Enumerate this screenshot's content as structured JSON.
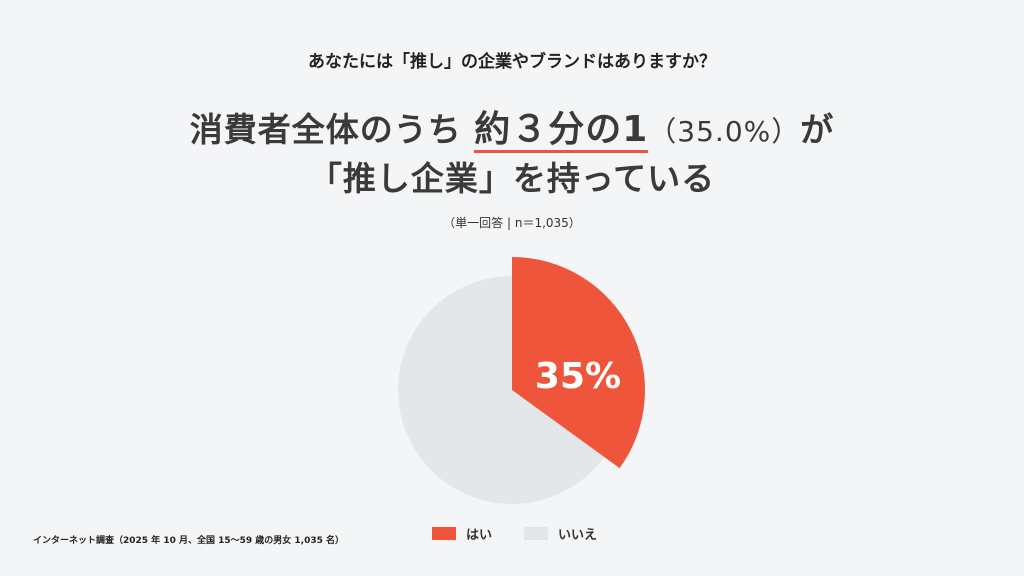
{
  "question": "あなたには「推し」の企業やブランドはありますか？",
  "headline": {
    "line1_pre": "消費者全体のうち",
    "line1_emphasis": "約３分の1",
    "line1_paren": "（35.0%）",
    "line1_post": "が",
    "line2": "「推し企業」を持っている"
  },
  "subtitle": "（単一回答 | n＝1,035）",
  "footnote": "インターネット調査（2025 年 10 月、全国 15〜59 歳の男女 1,035 名）",
  "chart_data": {
    "type": "pie",
    "slices": [
      {
        "label": "はい",
        "value": 35,
        "color": "#ef553a",
        "data_label": "35%"
      },
      {
        "label": "いいえ",
        "value": 65,
        "color": "#e4e7ea"
      }
    ],
    "start": "top",
    "direction": "clockwise",
    "highlighted_slice": "はい",
    "legend_position": "bottom"
  }
}
